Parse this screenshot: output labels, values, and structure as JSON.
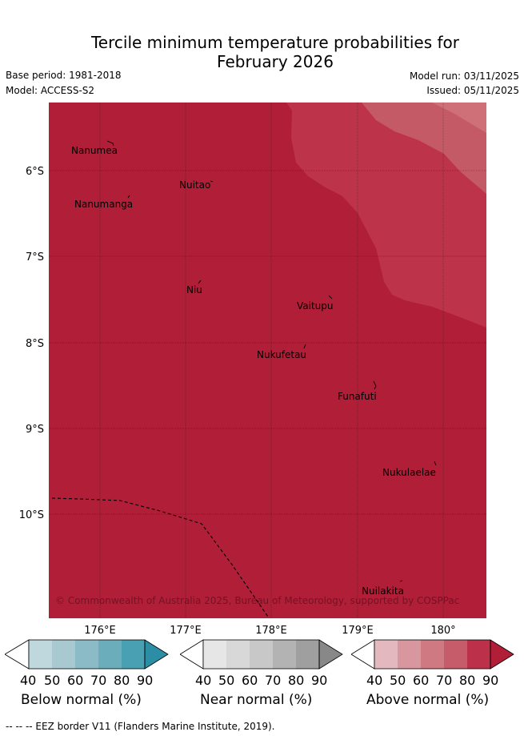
{
  "title": {
    "line1": "Tercile minimum temperature probabilities for",
    "line2": "February 2026"
  },
  "meta": {
    "base_period": "Base period: 1981-2018",
    "model": "Model: ACCESS-S2",
    "model_run": "Model run: 03/11/2025",
    "issued": "Issued: 05/11/2025"
  },
  "map": {
    "lat_labels": [
      "6°S",
      "7°S",
      "8°S",
      "9°S",
      "10°S"
    ],
    "lon_labels": [
      "176°E",
      "177°E",
      "178°E",
      "179°E",
      "180°"
    ],
    "places": [
      {
        "name": "Nanumea"
      },
      {
        "name": "Nuitao"
      },
      {
        "name": "Nanumanga"
      },
      {
        "name": "Niu"
      },
      {
        "name": "Vaitupu"
      },
      {
        "name": "Nukufetau"
      },
      {
        "name": "Funafuti"
      },
      {
        "name": "Nukulaelae"
      },
      {
        "name": "Nuilakita"
      }
    ],
    "copyright": "© Commonwealth of Australia 2025, Bureau of Meteorology, supported by COSPPac",
    "colors": {
      "above_90": "#b01e37",
      "above_80": "#bd3349",
      "above_70": "#c45a66",
      "above_60": "#cf6f78"
    }
  },
  "legend": {
    "ticks": [
      "40",
      "50",
      "60",
      "70",
      "80",
      "90"
    ],
    "below": {
      "title": "Below normal (%)",
      "colors": [
        "#ffffff",
        "#bed8de",
        "#a8c9cf",
        "#8bbbc6",
        "#6badbb",
        "#48a0b2",
        "#2c8ea5"
      ]
    },
    "near": {
      "title": "Near normal (%)",
      "colors": [
        "#ffffff",
        "#e6e6e6",
        "#d8d8d8",
        "#c8c8c8",
        "#b3b3b3",
        "#9f9f9f",
        "#888888"
      ]
    },
    "above": {
      "title": "Above normal (%)",
      "colors": [
        "#ffffff",
        "#e3b8bf",
        "#d8979f",
        "#cf7a82",
        "#c65b69",
        "#bc3149",
        "#b01e37"
      ]
    }
  },
  "footer": "--  --  -- EEZ border V11 (Flanders Marine Institute, 2019)."
}
